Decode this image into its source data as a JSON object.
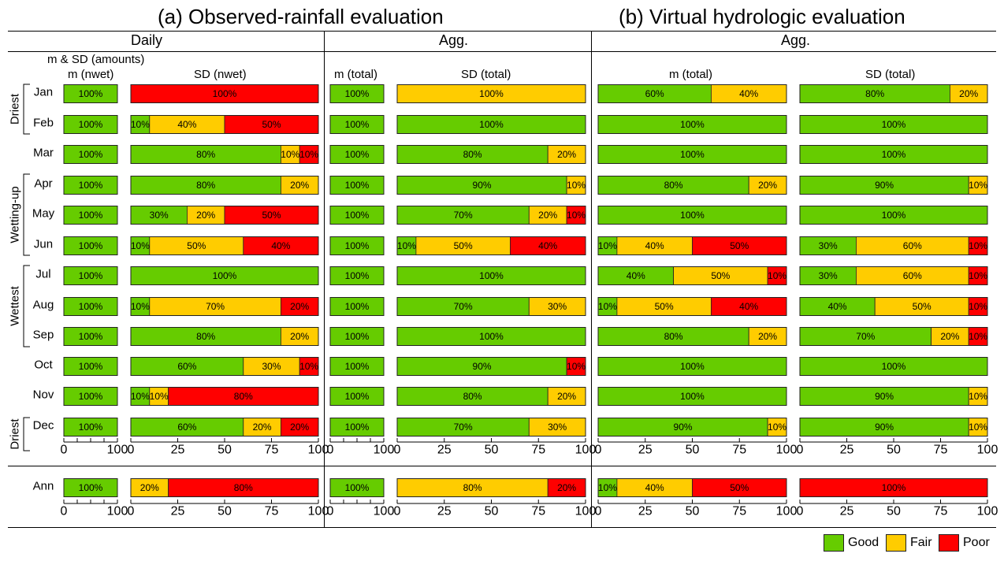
{
  "titles": {
    "a": "(a)  Observed-rainfall evaluation",
    "b": "(b)  Virtual hydrologic evaluation"
  },
  "subheaders": {
    "daily": "Daily",
    "agg_a": "Agg.",
    "agg_b": "Agg."
  },
  "panel_labels": {
    "p1_top": "m & SD (amounts)",
    "p1": "m (nwet)",
    "p2": "SD (nwet)",
    "p3": "m (total)",
    "p4": "SD (total)",
    "p5": "m (total)",
    "p6": "SD (total)"
  },
  "groups": {
    "driest_top": "Driest",
    "wetting": "Wetting-up",
    "wettest": "Wettest",
    "driest_bottom": "Driest"
  },
  "legend": [
    {
      "label": "Good",
      "color": "#66cc00"
    },
    {
      "label": "Fair",
      "color": "#ffcc00"
    },
    {
      "label": "Poor",
      "color": "#ff0000"
    }
  ],
  "chart_data": {
    "type": "bar",
    "orientation": "horizontal-stacked",
    "xlim": [
      0,
      100
    ],
    "xticks_narrow": [
      "0",
      "100"
    ],
    "xticks_wide": [
      "0",
      "25",
      "50",
      "75",
      "100"
    ],
    "categories": [
      "Jan",
      "Feb",
      "Mar",
      "Apr",
      "May",
      "Jun",
      "Jul",
      "Aug",
      "Sep",
      "Oct",
      "Nov",
      "Dec",
      "Ann"
    ],
    "series_names": [
      "Good",
      "Fair",
      "Poor"
    ],
    "colors": {
      "Good": "#66cc00",
      "Fair": "#ffcc00",
      "Poor": "#ff0000"
    },
    "panels": [
      {
        "id": "m_nwet",
        "values": [
          [
            100,
            0,
            0
          ],
          [
            100,
            0,
            0
          ],
          [
            100,
            0,
            0
          ],
          [
            100,
            0,
            0
          ],
          [
            100,
            0,
            0
          ],
          [
            100,
            0,
            0
          ],
          [
            100,
            0,
            0
          ],
          [
            100,
            0,
            0
          ],
          [
            100,
            0,
            0
          ],
          [
            100,
            0,
            0
          ],
          [
            100,
            0,
            0
          ],
          [
            100,
            0,
            0
          ],
          [
            100,
            0,
            0
          ]
        ]
      },
      {
        "id": "sd_nwet",
        "values": [
          [
            0,
            0,
            100
          ],
          [
            10,
            40,
            50
          ],
          [
            80,
            10,
            10
          ],
          [
            80,
            20,
            0
          ],
          [
            30,
            20,
            50
          ],
          [
            10,
            50,
            40
          ],
          [
            100,
            0,
            0
          ],
          [
            10,
            70,
            20
          ],
          [
            80,
            20,
            0
          ],
          [
            60,
            30,
            10
          ],
          [
            10,
            10,
            80
          ],
          [
            60,
            20,
            20
          ],
          [
            0,
            20,
            80
          ]
        ]
      },
      {
        "id": "m_total_a",
        "values": [
          [
            100,
            0,
            0
          ],
          [
            100,
            0,
            0
          ],
          [
            100,
            0,
            0
          ],
          [
            100,
            0,
            0
          ],
          [
            100,
            0,
            0
          ],
          [
            100,
            0,
            0
          ],
          [
            100,
            0,
            0
          ],
          [
            100,
            0,
            0
          ],
          [
            100,
            0,
            0
          ],
          [
            100,
            0,
            0
          ],
          [
            100,
            0,
            0
          ],
          [
            100,
            0,
            0
          ],
          [
            100,
            0,
            0
          ]
        ]
      },
      {
        "id": "sd_total_a",
        "values": [
          [
            0,
            100,
            0
          ],
          [
            100,
            0,
            0
          ],
          [
            80,
            20,
            0
          ],
          [
            90,
            10,
            0
          ],
          [
            70,
            20,
            10
          ],
          [
            10,
            50,
            40
          ],
          [
            100,
            0,
            0
          ],
          [
            70,
            30,
            0
          ],
          [
            100,
            0,
            0
          ],
          [
            90,
            0,
            10
          ],
          [
            80,
            20,
            0
          ],
          [
            70,
            30,
            0
          ],
          [
            0,
            80,
            20
          ]
        ]
      },
      {
        "id": "m_total_b",
        "values": [
          [
            60,
            40,
            0
          ],
          [
            100,
            0,
            0
          ],
          [
            100,
            0,
            0
          ],
          [
            80,
            20,
            0
          ],
          [
            100,
            0,
            0
          ],
          [
            10,
            40,
            50
          ],
          [
            40,
            50,
            10
          ],
          [
            10,
            50,
            40
          ],
          [
            80,
            20,
            0
          ],
          [
            100,
            0,
            0
          ],
          [
            100,
            0,
            0
          ],
          [
            90,
            10,
            0
          ],
          [
            10,
            40,
            50
          ]
        ]
      },
      {
        "id": "sd_total_b",
        "values": [
          [
            80,
            20,
            0
          ],
          [
            100,
            0,
            0
          ],
          [
            100,
            0,
            0
          ],
          [
            90,
            10,
            0
          ],
          [
            100,
            0,
            0
          ],
          [
            30,
            60,
            10
          ],
          [
            30,
            60,
            10
          ],
          [
            40,
            50,
            10
          ],
          [
            70,
            20,
            10
          ],
          [
            100,
            0,
            0
          ],
          [
            90,
            10,
            0
          ],
          [
            90,
            10,
            0
          ],
          [
            0,
            0,
            100
          ]
        ]
      }
    ]
  }
}
